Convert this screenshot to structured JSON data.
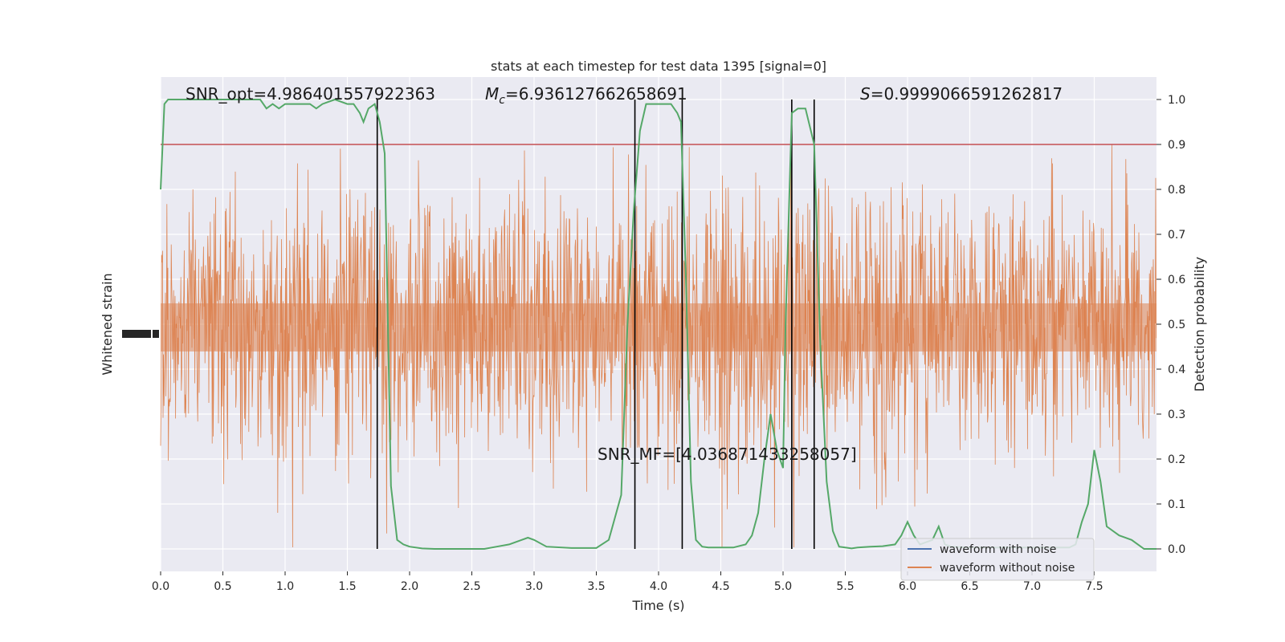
{
  "chart_data": {
    "type": "line",
    "title": "stats at each timestep for test data 1395 [signal=0]",
    "xlabel": "Time (s)",
    "ylabel_left": "Whitened strain",
    "ylabel_right": "Detection probability",
    "xlim": [
      0,
      8
    ],
    "ylim_right": [
      -0.05,
      1.05
    ],
    "x_ticks": [
      "0.0",
      "0.5",
      "1.0",
      "1.5",
      "2.0",
      "2.5",
      "3.0",
      "3.5",
      "4.0",
      "4.5",
      "5.0",
      "5.5",
      "6.0",
      "6.5",
      "7.0",
      "7.5"
    ],
    "y_ticks_right": [
      "0.0",
      "0.1",
      "0.2",
      "0.3",
      "0.4",
      "0.5",
      "0.6",
      "0.7",
      "0.8",
      "0.9",
      "1.0"
    ],
    "grid": true,
    "legend_placement": "lower-right",
    "annotations": {
      "snr_opt": "SNR_opt=4.986401557922363",
      "mc_symbol": "M",
      "mc_sub": "c",
      "mc_value": "=6.936127662658691",
      "s_symbol": "S",
      "s_value": "=0.9999066591262817",
      "snr_mf": "SNR_MF=[4.036871433258057]"
    },
    "threshold": 0.9,
    "vertical_lines_x": [
      1.74,
      3.81,
      4.19,
      5.07,
      5.25
    ],
    "series": [
      {
        "name": "waveform with noise",
        "color": "#4c72b0"
      },
      {
        "name": "waveform without noise",
        "color": "#dd8452"
      },
      {
        "color": "#55a868",
        "x": [
          0.0,
          0.03,
          0.06,
          0.1,
          0.2,
          0.3,
          0.4,
          0.5,
          0.6,
          0.7,
          0.8,
          0.85,
          0.9,
          0.95,
          1.0,
          1.1,
          1.15,
          1.2,
          1.25,
          1.3,
          1.4,
          1.5,
          1.55,
          1.6,
          1.63,
          1.67,
          1.72,
          1.76,
          1.8,
          1.85,
          1.9,
          1.95,
          2.0,
          2.1,
          2.2,
          2.4,
          2.6,
          2.7,
          2.8,
          2.9,
          2.95,
          3.0,
          3.1,
          3.3,
          3.5,
          3.6,
          3.7,
          3.75,
          3.8,
          3.85,
          3.9,
          3.95,
          4.0,
          4.1,
          4.15,
          4.18,
          4.22,
          4.26,
          4.3,
          4.35,
          4.4,
          4.5,
          4.6,
          4.7,
          4.75,
          4.8,
          4.85,
          4.9,
          4.95,
          5.0,
          5.02,
          5.07,
          5.12,
          5.18,
          5.25,
          5.3,
          5.35,
          5.4,
          5.45,
          5.5,
          5.55,
          5.6,
          5.7,
          5.8,
          5.9,
          5.95,
          6.0,
          6.05,
          6.1,
          6.15,
          6.2,
          6.25,
          6.3,
          6.35,
          6.5,
          6.7,
          6.9,
          7.0,
          7.1,
          7.2,
          7.3,
          7.35,
          7.4,
          7.45,
          7.5,
          7.55,
          7.6,
          7.7,
          7.8,
          7.85,
          7.9,
          8.0
        ],
        "y": [
          0.8,
          0.99,
          1.0,
          1.0,
          1.0,
          1.0,
          1.0,
          1.0,
          1.0,
          1.0,
          1.0,
          0.98,
          0.99,
          0.98,
          0.99,
          0.99,
          0.99,
          0.99,
          0.98,
          0.99,
          1.0,
          0.99,
          0.99,
          0.97,
          0.95,
          0.98,
          0.99,
          0.95,
          0.88,
          0.14,
          0.02,
          0.01,
          0.005,
          0.001,
          0.0,
          0.0,
          0.0,
          0.005,
          0.01,
          0.02,
          0.025,
          0.02,
          0.005,
          0.002,
          0.002,
          0.02,
          0.12,
          0.5,
          0.75,
          0.93,
          0.99,
          0.99,
          0.99,
          0.99,
          0.97,
          0.95,
          0.6,
          0.15,
          0.02,
          0.005,
          0.003,
          0.003,
          0.003,
          0.01,
          0.03,
          0.08,
          0.2,
          0.3,
          0.22,
          0.18,
          0.5,
          0.97,
          0.98,
          0.98,
          0.9,
          0.45,
          0.15,
          0.04,
          0.005,
          0.003,
          0.001,
          0.003,
          0.005,
          0.006,
          0.01,
          0.03,
          0.06,
          0.03,
          0.01,
          0.015,
          0.02,
          0.05,
          0.01,
          0.005,
          0.003,
          0.003,
          0.003,
          0.003,
          0.003,
          0.003,
          0.003,
          0.01,
          0.06,
          0.1,
          0.22,
          0.15,
          0.05,
          0.03,
          0.02,
          0.01,
          0.0,
          0.0
        ]
      }
    ]
  }
}
